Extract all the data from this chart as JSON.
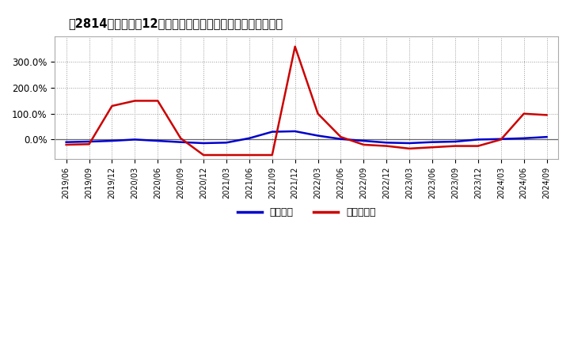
{
  "title": "[2814]  利益だ12か月移動合計の対前年同期増減率の推移",
  "dates": [
    "2019/06",
    "2019/09",
    "2019/12",
    "2020/03",
    "2020/06",
    "2020/09",
    "2020/12",
    "2021/03",
    "2021/06",
    "2021/09",
    "2021/12",
    "2022/03",
    "2022/06",
    "2022/09",
    "2022/12",
    "2023/03",
    "2023/06",
    "2023/09",
    "2023/12",
    "2024/03",
    "2024/06",
    "2024/09"
  ],
  "keijo": [
    -0.1,
    -0.08,
    -0.05,
    0.0,
    -0.05,
    -0.1,
    -0.14,
    -0.12,
    0.05,
    0.3,
    0.32,
    0.15,
    0.02,
    -0.05,
    -0.12,
    -0.14,
    -0.1,
    -0.08,
    0.0,
    0.02,
    0.05,
    0.1
  ],
  "toki": [
    -0.2,
    -0.18,
    1.3,
    1.5,
    1.5,
    0.05,
    -0.6,
    -0.6,
    -0.6,
    -0.6,
    3.6,
    1.0,
    0.1,
    -0.2,
    -0.25,
    -0.35,
    -0.3,
    -0.25,
    -0.25,
    0.0,
    1.0,
    0.95
  ],
  "keijo_color": "#0000cc",
  "toki_color": "#cc0000",
  "bg_color": "#ffffff",
  "plot_bg_color": "#ffffff",
  "grid_color": "#999999",
  "legend_keijo": "経常利益",
  "legend_toki": "当期組利益",
  "ylim": [
    -0.75,
    4.0
  ],
  "yticks": [
    0.0,
    1.0,
    2.0,
    3.0
  ],
  "ytick_labels": [
    "0.0%",
    "100.0%",
    "200.0%",
    "300.0%"
  ],
  "title_bracket_left": "[2814]",
  "title_main": "利益だ12か月移動合計の対前年同期増減率の推移"
}
